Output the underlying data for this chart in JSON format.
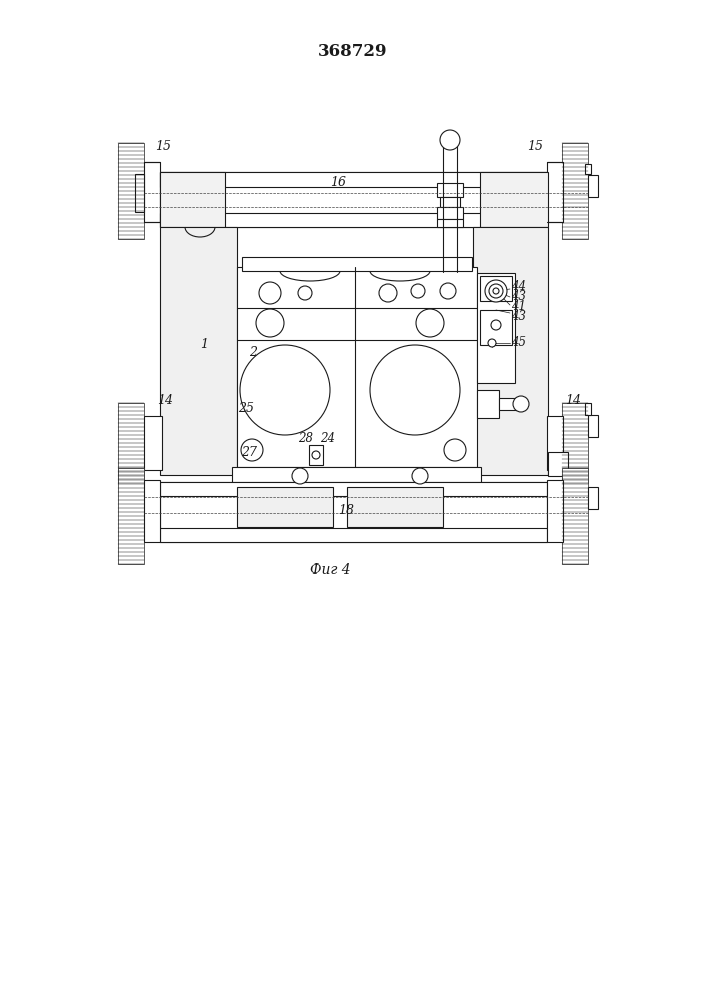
{
  "title": "368729",
  "caption": "Фиг 4",
  "bg_color": "#ffffff",
  "line_color": "#1a1a1a",
  "lw": 0.8,
  "tlw": 0.5
}
